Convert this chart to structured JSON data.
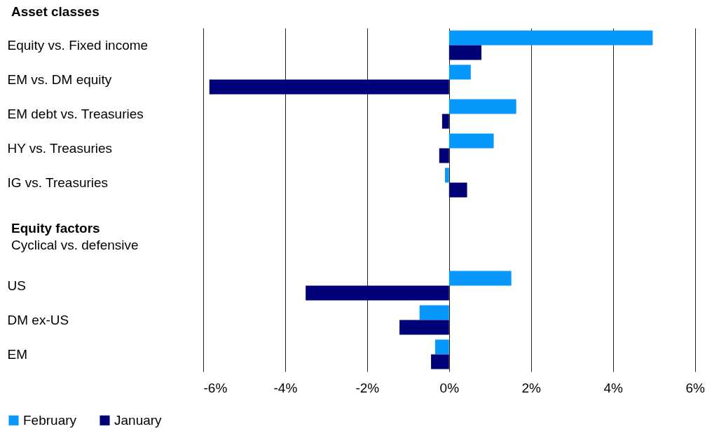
{
  "chart_data": {
    "type": "bar",
    "orientation": "horizontal",
    "categories": [
      "Equity vs. Fixed income",
      "EM vs. DM equity",
      "EM debt vs. Treasuries",
      "HY vs. Treasuries",
      "IG vs. Treasuries",
      null,
      null,
      "US",
      "DM ex-US",
      "EM"
    ],
    "series": [
      {
        "name": "February",
        "color": "#0897fb",
        "values": [
          4.97,
          0.53,
          1.64,
          1.09,
          -0.1,
          null,
          null,
          1.52,
          -0.72,
          -0.34
        ]
      },
      {
        "name": "January",
        "color": "#000077",
        "values": [
          0.79,
          -5.85,
          -0.17,
          -0.24,
          0.44,
          null,
          null,
          -3.5,
          -1.21,
          -0.44
        ]
      }
    ],
    "xlim": [
      -6,
      6.4
    ],
    "xticks": [
      {
        "value": -6,
        "label": "-6%"
      },
      {
        "value": -4,
        "label": "-4%"
      },
      {
        "value": -2,
        "label": "-2%"
      },
      {
        "value": 0,
        "label": "0%"
      },
      {
        "value": 2,
        "label": "2%"
      },
      {
        "value": 4,
        "label": "4%"
      },
      {
        "value": 6,
        "label": "6%"
      }
    ],
    "grid": "x",
    "legend": "bottom left",
    "annotations": [
      "Asset classes",
      "Equity factors",
      "Cyclical vs. defensive"
    ]
  }
}
